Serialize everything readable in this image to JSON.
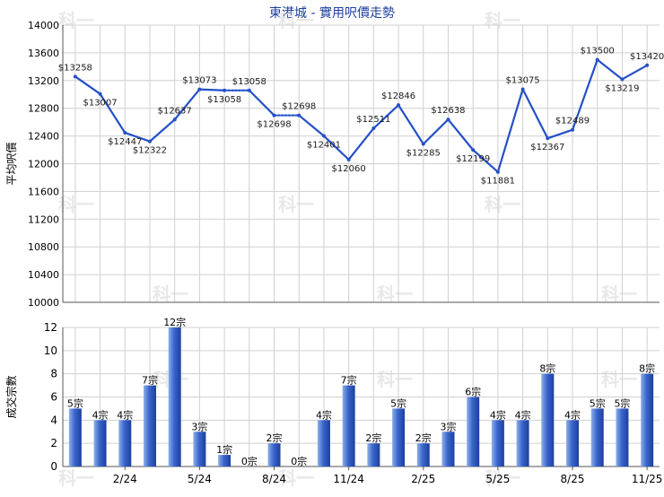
{
  "title": "東港城 - 實用呎價走勢",
  "watermark": "科一",
  "colors": {
    "line": "#2450c8",
    "bar_light": "#8fb0ea",
    "bar_mid": "#3a66cc",
    "bar_dark": "#1c3f9e",
    "grid": "#d0d0d0",
    "axis": "#555555",
    "text": "#000000",
    "title": "#1b3fa0"
  },
  "chart_data": [
    {
      "type": "line",
      "title": "東港城 - 實用呎價走勢",
      "ylabel": "平均呎價",
      "ylim": [
        10000,
        14000
      ],
      "yticks": [
        10000,
        10400,
        10800,
        11200,
        11600,
        12000,
        12400,
        12800,
        13200,
        13600,
        14000
      ],
      "grid": true,
      "period_count": 24,
      "series": [
        {
          "points": [
            {
              "i": 0,
              "value": 13258,
              "label": "$13258"
            },
            {
              "i": 1,
              "value": 13007,
              "label": "$13007"
            },
            {
              "i": 2,
              "value": 12447,
              "label": "$12447"
            },
            {
              "i": 3,
              "value": 12322,
              "label": "$12322"
            },
            {
              "i": 4,
              "value": 12637,
              "label": "$12637"
            },
            {
              "i": 5,
              "value": 13073,
              "label": "$13073"
            },
            {
              "i": 6,
              "value": 13058,
              "label": "$13058"
            },
            {
              "i": 7,
              "value": 13058,
              "label": "$13058"
            },
            {
              "i": 8,
              "value": 12698,
              "label": "$12698"
            },
            {
              "i": 9,
              "value": 12698,
              "label": "$12698"
            },
            {
              "i": 10,
              "value": 12401,
              "label": "$12401"
            },
            {
              "i": 11,
              "value": 12060,
              "label": "$12060"
            },
            {
              "i": 12,
              "value": 12511,
              "label": "$12511"
            },
            {
              "i": 13,
              "value": 12846,
              "label": "$12846"
            },
            {
              "i": 14,
              "value": 12285,
              "label": "$12285"
            },
            {
              "i": 15,
              "value": 12638,
              "label": "$12638"
            },
            {
              "i": 16,
              "value": 12199,
              "label": "$12199"
            },
            {
              "i": 17,
              "value": 11881,
              "label": "$11881"
            },
            {
              "i": 18,
              "value": 13075,
              "label": "$13075"
            },
            {
              "i": 19,
              "value": 12367,
              "label": "$12367"
            },
            {
              "i": 20,
              "value": 12489,
              "label": "$12489"
            },
            {
              "i": 21,
              "value": 13500,
              "label": "$13500"
            },
            {
              "i": 22,
              "value": 13219,
              "label": "$13219"
            },
            {
              "i": 23,
              "value": 13420,
              "label": "$13420"
            }
          ],
          "dotted_segments": [
            [
              6,
              7
            ],
            [
              8,
              9
            ]
          ]
        }
      ]
    },
    {
      "type": "bar",
      "ylabel": "成交宗數",
      "ylim": [
        0,
        12
      ],
      "yticks": [
        0,
        2,
        4,
        6,
        8,
        10,
        12
      ],
      "grid": true,
      "x_tick_labels": [
        {
          "i": 2,
          "label": "2/24"
        },
        {
          "i": 5,
          "label": "5/24"
        },
        {
          "i": 8,
          "label": "8/24"
        },
        {
          "i": 11,
          "label": "11/24"
        },
        {
          "i": 14,
          "label": "2/25"
        },
        {
          "i": 17,
          "label": "5/25"
        },
        {
          "i": 20,
          "label": "8/25"
        },
        {
          "i": 23,
          "label": "11/25"
        }
      ],
      "values": [
        5,
        4,
        4,
        7,
        12,
        3,
        1,
        0,
        2,
        0,
        4,
        7,
        2,
        5,
        2,
        3,
        6,
        4,
        4,
        8,
        4,
        5,
        5,
        8
      ],
      "value_labels": [
        "5宗",
        "4宗",
        "4宗",
        "7宗",
        "12宗",
        "3宗",
        "1宗",
        "0宗",
        "2宗",
        "0宗",
        "4宗",
        "7宗",
        "2宗",
        "5宗",
        "2宗",
        "3宗",
        "6宗",
        "4宗",
        "4宗",
        "8宗",
        "4宗",
        "5宗",
        "5宗",
        "8宗"
      ]
    }
  ]
}
